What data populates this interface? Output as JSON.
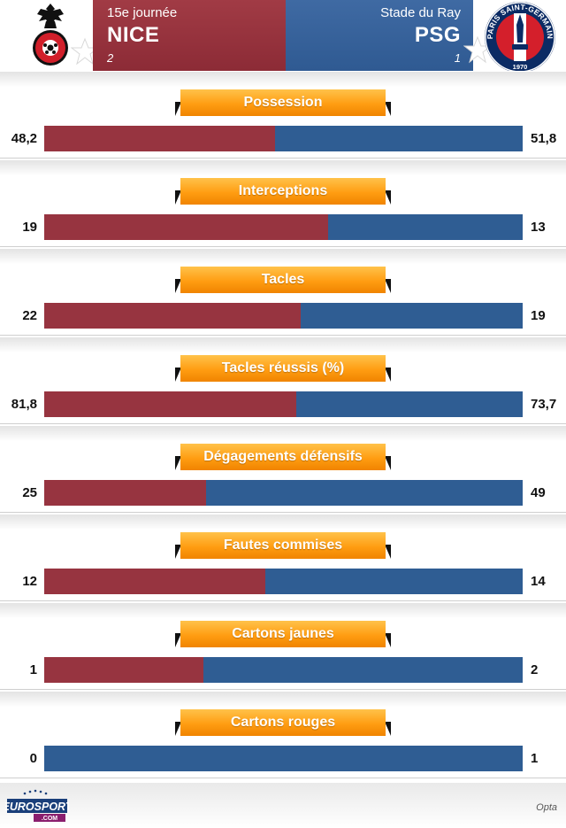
{
  "header": {
    "round": "15e journée",
    "venue": "Stade du Ray",
    "home": {
      "team": "NICE",
      "score": "2"
    },
    "away": {
      "team": "PSG",
      "score": "1"
    },
    "away_crest_text": {
      "arc": "PARIS SAINT-GERMAIN",
      "year": "1970"
    }
  },
  "colors": {
    "home": "#973440",
    "away": "#2f5d93",
    "label_bg": "#ff9d12",
    "header_home": "#8c2b36",
    "header_away": "#2f5a92"
  },
  "stats": [
    {
      "label": "Possession",
      "home": "48,2",
      "away": "51,8",
      "home_share": 0.482
    },
    {
      "label": "Interceptions",
      "home": "19",
      "away": "13",
      "home_share": 0.59375
    },
    {
      "label": "Tacles",
      "home": "22",
      "away": "19",
      "home_share": 0.5366
    },
    {
      "label": "Tacles réussis (%)",
      "home": "81,8",
      "away": "73,7",
      "home_share": 0.526
    },
    {
      "label": "Dégagements défensifs",
      "home": "25",
      "away": "49",
      "home_share": 0.3378
    },
    {
      "label": "Fautes commises",
      "home": "12",
      "away": "14",
      "home_share": 0.4615
    },
    {
      "label": "Cartons jaunes",
      "home": "1",
      "away": "2",
      "home_share": 0.3333
    },
    {
      "label": "Cartons rouges",
      "home": "0",
      "away": "1",
      "home_share": 0.0
    }
  ],
  "footer": {
    "logo_top": "EUROSPORT",
    "logo_bottom": ".COM",
    "source": "Opta"
  },
  "icons": {
    "home_crest": "nice-eagle-crest-icon",
    "away_crest": "psg-crest-icon",
    "star": "star-icon"
  }
}
